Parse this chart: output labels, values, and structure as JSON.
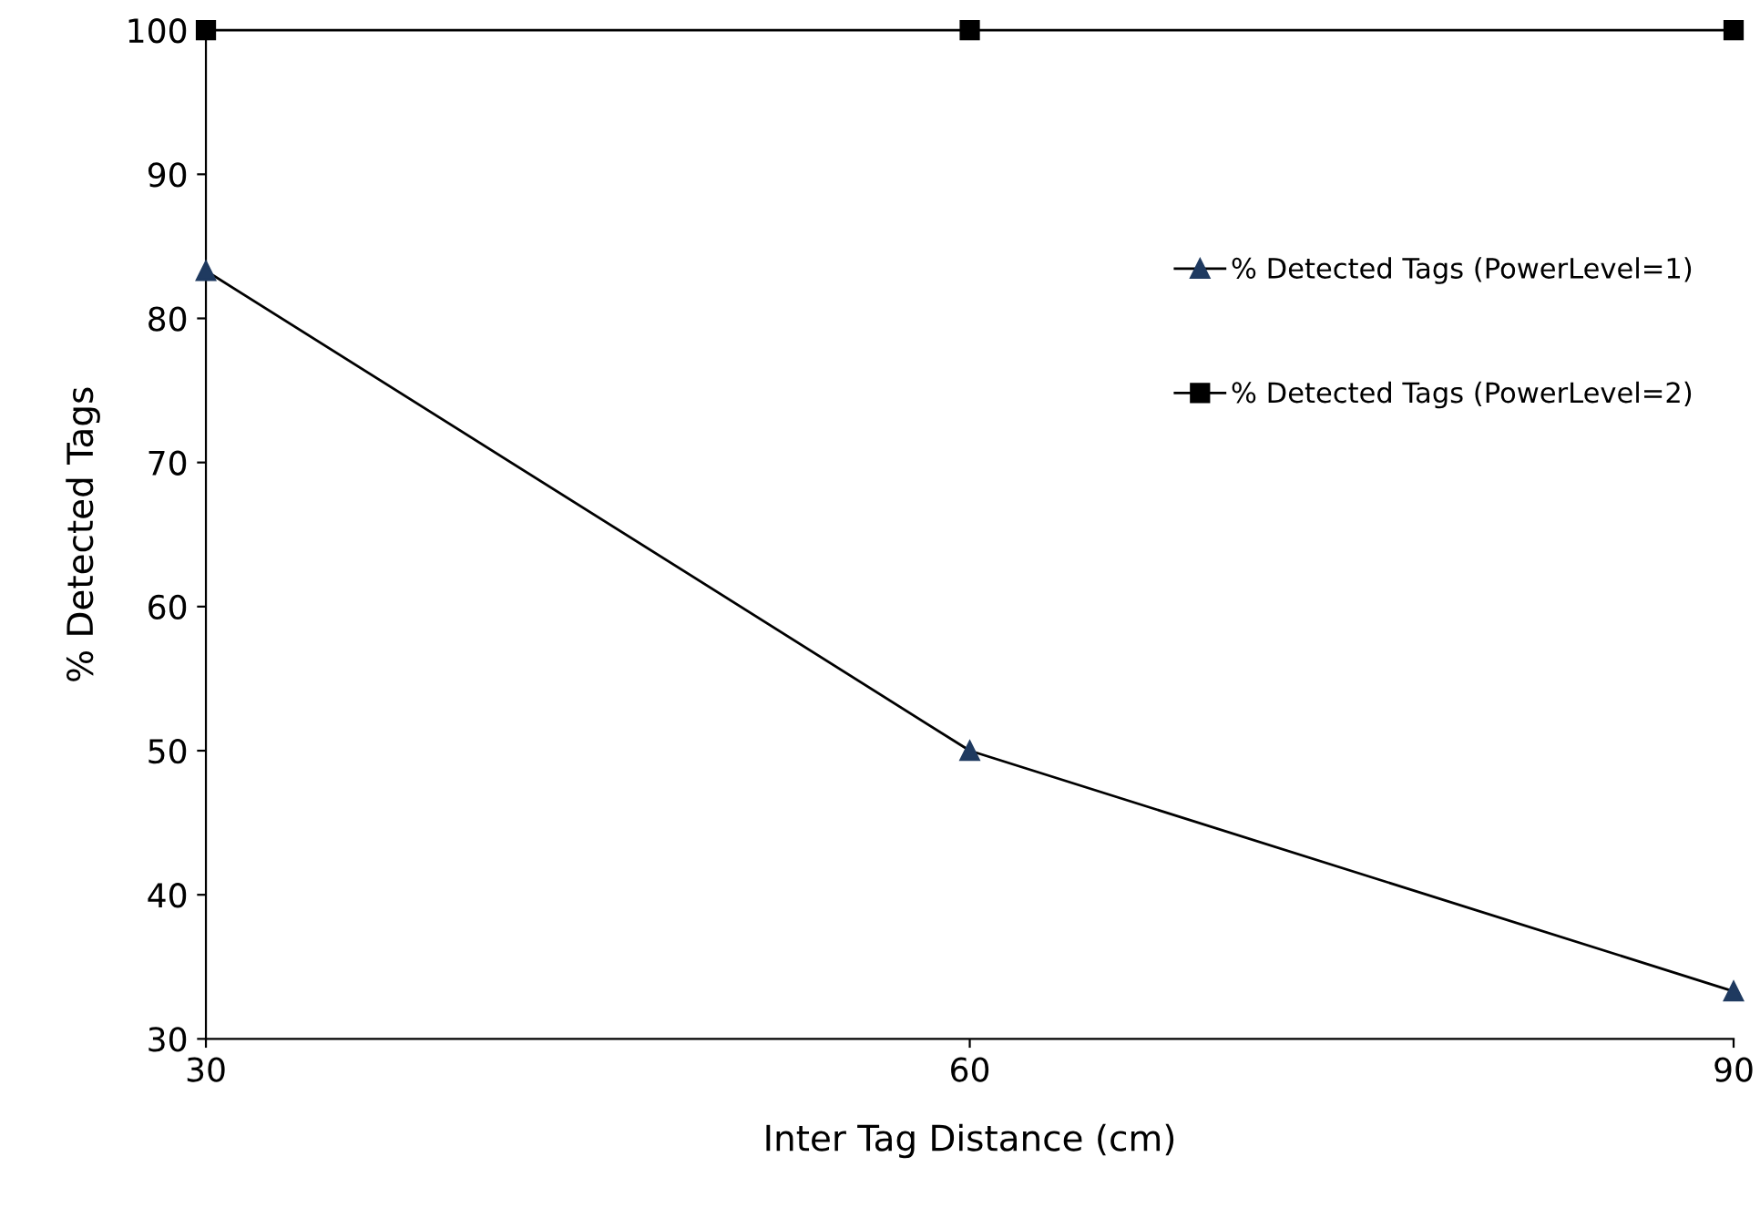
{
  "chart_data": {
    "type": "line",
    "xlabel": "Inter Tag Distance (cm)",
    "ylabel": "% Detected Tags",
    "x": [
      30,
      60,
      90
    ],
    "series": [
      {
        "name": "% Detected Tags (PowerLevel=1)",
        "color": "#1f3a60",
        "marker": "triangle",
        "values": [
          83.3,
          50,
          33.3
        ]
      },
      {
        "name": "% Detected Tags (PowerLevel=2)",
        "color": "#000000",
        "marker": "square",
        "values": [
          100,
          100,
          100
        ]
      }
    ],
    "xlim": [
      30,
      90
    ],
    "xticks": [
      30,
      60,
      90
    ],
    "ylim": [
      30,
      100
    ],
    "yticks": [
      30,
      40,
      50,
      60,
      70,
      80,
      90,
      100
    ],
    "grid": false,
    "legend": "right",
    "line_style": "solid"
  }
}
